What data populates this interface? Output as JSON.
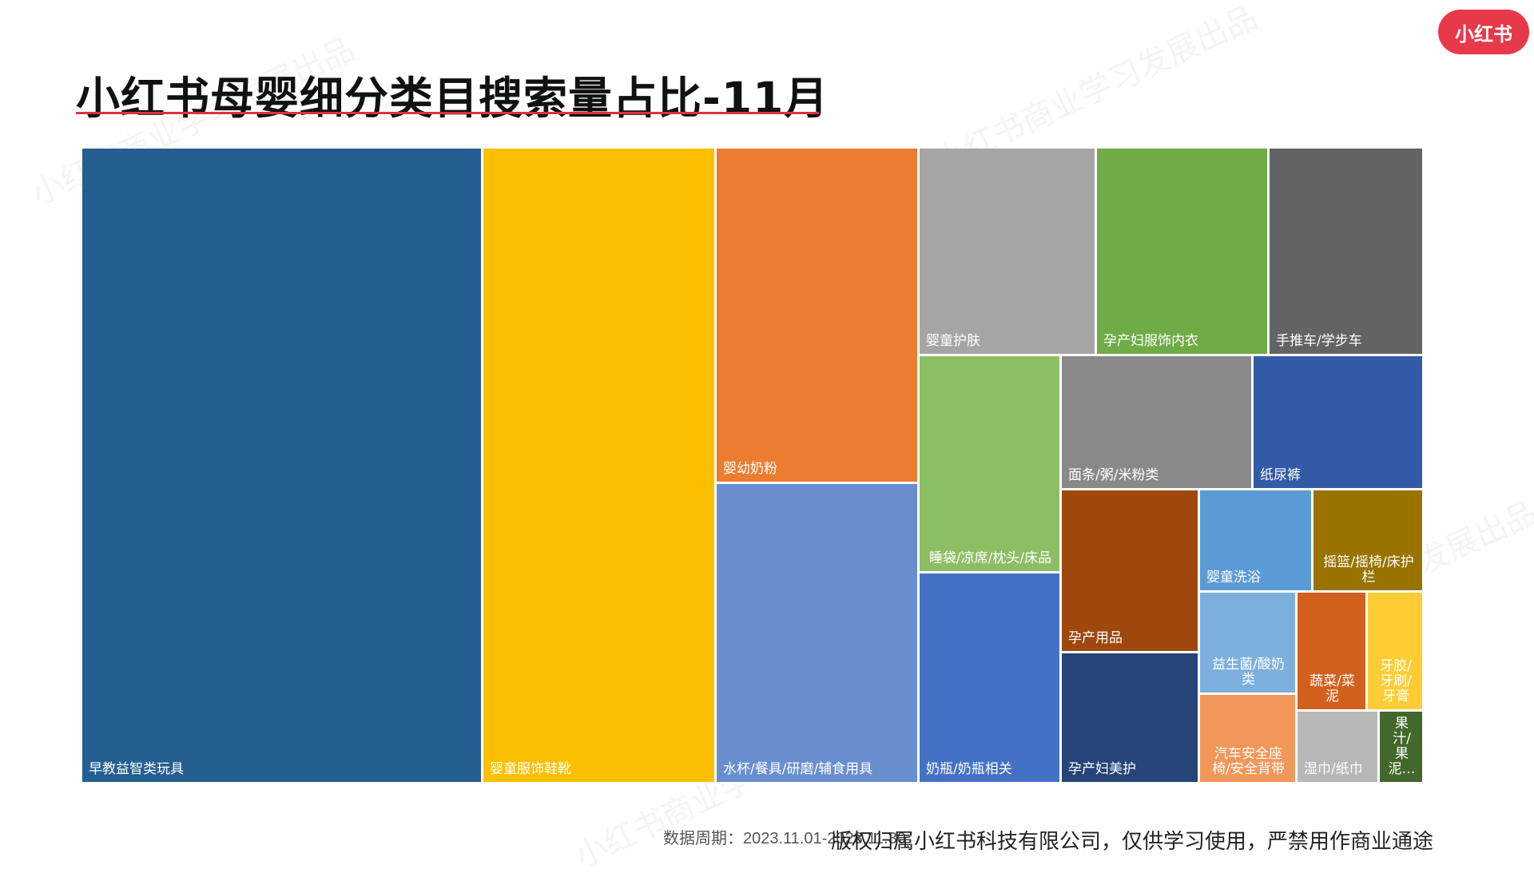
{
  "header": {
    "title": "小红书母婴细分类目搜索量占比-11月",
    "logo_text": "小红书"
  },
  "footer": {
    "date_text": "数据周期：2023.11.01-2023.11.30",
    "copyright": "版权归属小红书科技有限公司，仅供学习使用，严禁用作商业通途"
  },
  "watermark_text": "小红书商业学习发展出品",
  "chart_data": {
    "type": "treemap",
    "title": "小红书母婴细分类目搜索量占比-11月",
    "nodes": [
      {
        "label": "早教益智类玩具",
        "value": 30.3,
        "color": "#255e91"
      },
      {
        "label": "婴童服饰鞋靴",
        "value": 17.6,
        "color": "#fcbf00"
      },
      {
        "label": "婴幼奶粉",
        "value": 8.3,
        "color": "#ec7c30"
      },
      {
        "label": "水杯/餐具/研磨/辅食用具",
        "value": 7.6,
        "color": "#698ed0"
      },
      {
        "label": "婴童护肤",
        "value": 4.1,
        "color": "#a5a5a5"
      },
      {
        "label": "孕产妇服饰内衣",
        "value": 3.9,
        "color": "#6fac46"
      },
      {
        "label": "手推车/学步车",
        "value": 3.6,
        "color": "#636363"
      },
      {
        "label": "睡袋/凉席/枕头/床品",
        "value": 2.6,
        "color": "#8cbf64"
      },
      {
        "label": "面条/粥/米粉类",
        "value": 2.9,
        "color": "#898989"
      },
      {
        "label": "纸尿裤",
        "value": 2.7,
        "color": "#335aa6"
      },
      {
        "label": "奶瓶/奶瓶相关",
        "value": 2.6,
        "color": "#4471c4"
      },
      {
        "label": "孕产用品",
        "value": 1.9,
        "color": "#9e480e"
      },
      {
        "label": "孕产妇美护",
        "value": 1.6,
        "color": "#264478"
      },
      {
        "label": "婴童洗浴",
        "value": 1.4,
        "color": "#5b9bd5"
      },
      {
        "label": "摇篮/摇椅/床护栏",
        "value": 1.3,
        "color": "#997300"
      },
      {
        "label": "益生菌/酸奶类",
        "value": 1.1,
        "color": "#7cafdd"
      },
      {
        "label": "汽车安全座椅/安全背带",
        "value": 1.0,
        "color": "#f1975a"
      },
      {
        "label": "蔬菜/菜泥",
        "value": 0.8,
        "color": "#d2601d"
      },
      {
        "label": "牙胶/牙刷/牙膏",
        "value": 0.7,
        "color": "#ffcd33"
      },
      {
        "label": "湿巾/纸巾",
        "value": 0.6,
        "color": "#b7b7b7"
      },
      {
        "label": "果汁/果泥…",
        "value": 0.3,
        "color": "#43682b"
      }
    ]
  }
}
